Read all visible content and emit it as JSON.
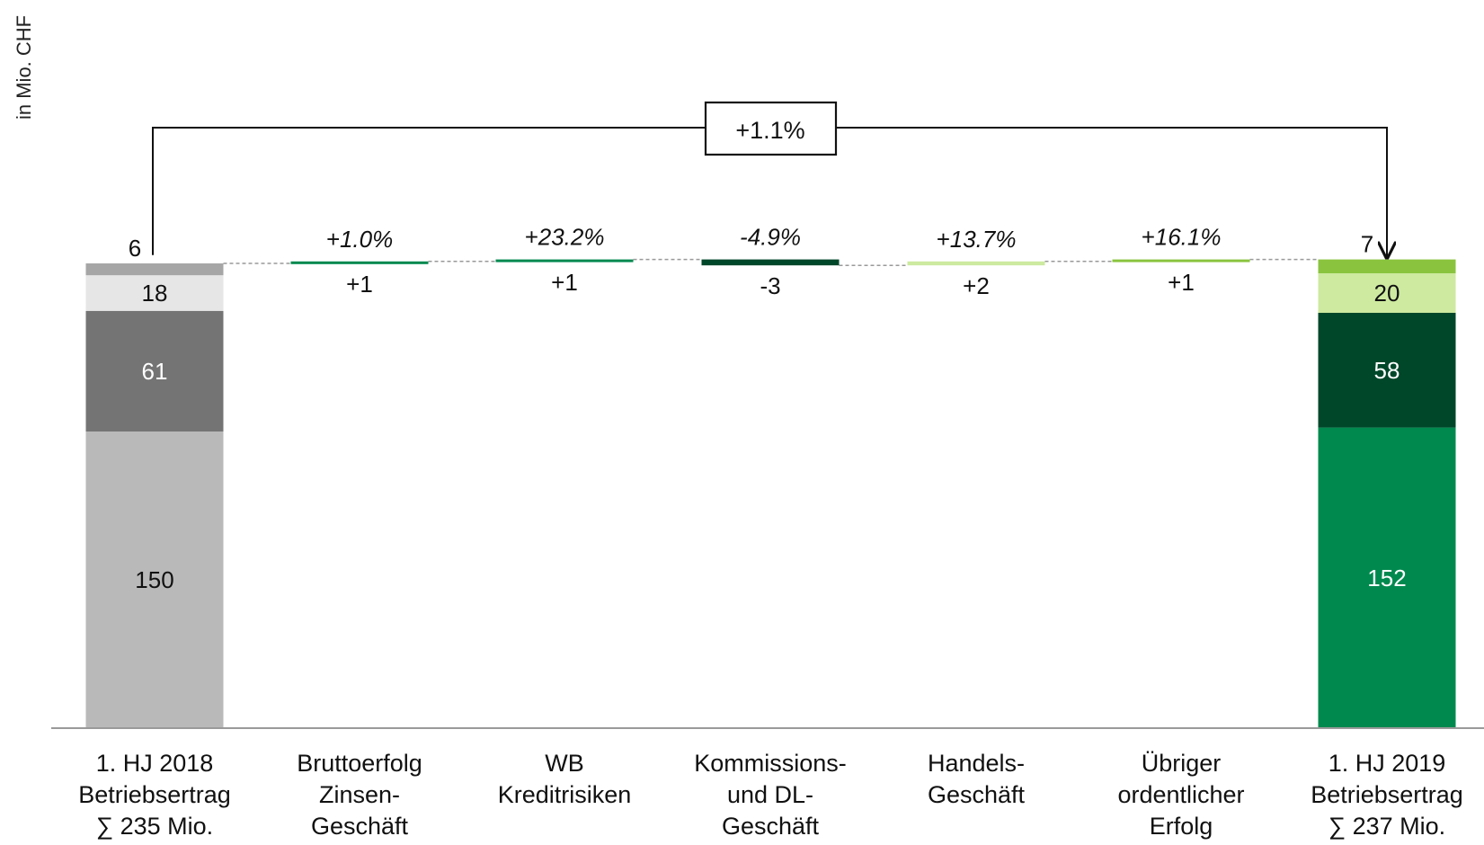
{
  "chart_data": {
    "type": "bar",
    "subtype": "waterfall",
    "ylabel": "in Mio. CHF",
    "categories": [
      [
        "1. HJ 2018",
        "Betriebsertrag",
        "∑ 235 Mio."
      ],
      [
        "Bruttoerfolg",
        "Zinsen-",
        "Geschäft"
      ],
      [
        "WB",
        "Kreditrisiken"
      ],
      [
        "Kommissions-",
        "und DL-",
        "Geschäft"
      ],
      [
        "Handels-",
        "Geschäft"
      ],
      [
        "Übriger",
        "ordentlicher",
        "Erfolg"
      ],
      [
        "1. HJ 2019",
        "Betriebsertrag",
        "∑ 237 Mio."
      ]
    ],
    "start_stack": {
      "total": 235,
      "segments": [
        {
          "value": 150,
          "label": "150",
          "color": "#b9b9b9",
          "text_color": "#111111"
        },
        {
          "value": 61,
          "label": "61",
          "color": "#747474",
          "text_color": "#ffffff"
        },
        {
          "value": 18,
          "label": "18",
          "color": "#e6e6e6",
          "text_color": "#111111"
        },
        {
          "value": 6,
          "label": "6",
          "color": "#a6a6a6",
          "text_color": "#111111",
          "label_outside": true
        }
      ]
    },
    "changes": [
      {
        "delta": 1,
        "label": "+1",
        "pct": "+1.0%",
        "color": "#00894f"
      },
      {
        "delta": 1,
        "label": "+1",
        "pct": "+23.2%",
        "color": "#00894f"
      },
      {
        "delta": -3,
        "label": "-3",
        "pct": "-4.9%",
        "color": "#00472a"
      },
      {
        "delta": 2,
        "label": "+2",
        "pct": "+13.7%",
        "color": "#cdeaa0"
      },
      {
        "delta": 1,
        "label": "+1",
        "pct": "+16.1%",
        "color": "#8ac43f"
      }
    ],
    "end_stack": {
      "total": 237,
      "segments": [
        {
          "value": 152,
          "label": "152",
          "color": "#00894f",
          "text_color": "#ffffff"
        },
        {
          "value": 58,
          "label": "58",
          "color": "#00472a",
          "text_color": "#ffffff"
        },
        {
          "value": 20,
          "label": "20",
          "color": "#cdeaa0",
          "text_color": "#111111"
        },
        {
          "value": 7,
          "label": "7",
          "color": "#8ac43f",
          "text_color": "#111111",
          "label_outside": true
        }
      ]
    },
    "total_change": "+1.1%",
    "ylim": [
      0,
      235
    ]
  }
}
